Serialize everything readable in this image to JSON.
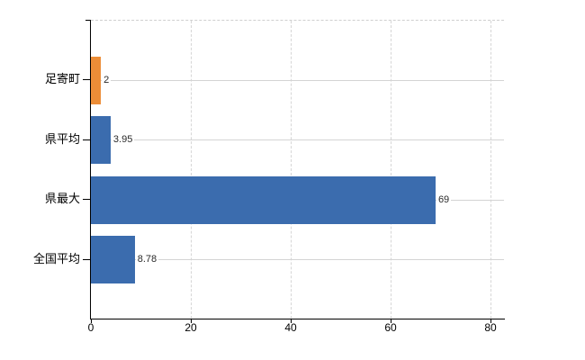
{
  "chart_data": {
    "type": "bar",
    "orientation": "horizontal",
    "title": "",
    "xlabel": "",
    "ylabel": "",
    "categories": [
      "足寄町",
      "県平均",
      "県最大",
      "全国平均"
    ],
    "values": [
      2,
      3.95,
      69,
      8.78
    ],
    "value_labels": [
      "2",
      "3.95",
      "69",
      "8.78"
    ],
    "bar_colors": [
      "#EC8D37",
      "#3B6CAE",
      "#3B6CAE",
      "#3B6CAE"
    ],
    "highlight_color": "#EC8D37",
    "series_color": "#3B6CAE",
    "x_ticks": [
      0,
      20,
      40,
      60,
      80
    ],
    "x_tick_labels": [
      "0",
      "20",
      "40",
      "60",
      "80"
    ],
    "xlim": [
      0,
      82.7
    ],
    "legend": "none",
    "grid": {
      "vertical_lines": "dashed",
      "category_lines": "solid",
      "top_border": "dashed",
      "color": "#D4D4D4"
    },
    "axis_color": "#000000",
    "background_color": "#FFFFFF"
  }
}
